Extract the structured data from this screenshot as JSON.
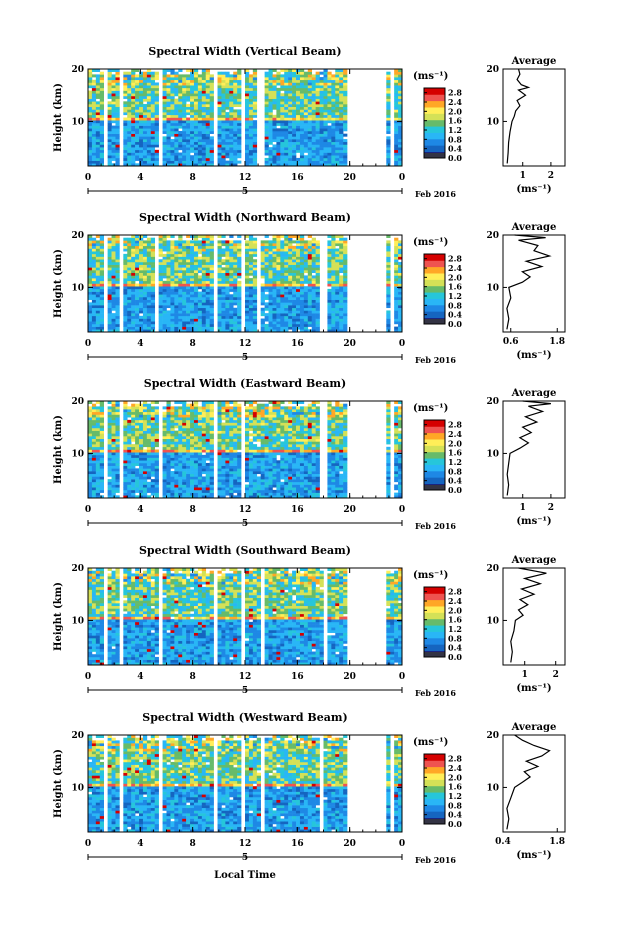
{
  "figure": {
    "xlabel": "Local Time",
    "date_label": "Feb 2016",
    "day_label": "5",
    "colorbar_unit": "(ms⁻¹)",
    "average_title": "Average",
    "average_xlabel": "(ms⁻¹)",
    "ylabel": "Height (km)"
  },
  "colors": {
    "colormap": [
      "#1a237e",
      "#1565c0",
      "#1e88e5",
      "#29b6f6",
      "#26c6da",
      "#66bb6a",
      "#d4e157",
      "#ffee58",
      "#ffa726",
      "#ef5350",
      "#d50000"
    ]
  },
  "chart_data": [
    {
      "type": "heatmap",
      "title": "Spectral Width (Vertical Beam)",
      "xlim": [
        0,
        24
      ],
      "xticks": [
        "0",
        "4",
        "8",
        "12",
        "16",
        "20",
        "0"
      ],
      "ylim": [
        1.5,
        20
      ],
      "yticks": [
        "10",
        "20"
      ],
      "colorbar_ticks": [
        "0.0",
        "0.4",
        "0.8",
        "1.2",
        "1.6",
        "2.0",
        "2.4",
        "2.8"
      ],
      "colorbar_range": [
        0,
        3.0
      ],
      "gaps_hours": [
        [
          1.2,
          1.5
        ],
        [
          2.3,
          2.7
        ],
        [
          5.3,
          5.6
        ],
        [
          9.5,
          9.9
        ],
        [
          11.7,
          12.1
        ],
        [
          13.0,
          13.4
        ],
        [
          19.7,
          22.9
        ],
        [
          23.2,
          23.4
        ]
      ],
      "average": {
        "xlim": [
          0.3,
          2.5
        ],
        "xticks": [
          "1",
          "2"
        ],
        "yticks": [
          "10",
          "20"
        ],
        "ylim": [
          1.5,
          20
        ],
        "profile": [
          [
            0.45,
            2
          ],
          [
            0.48,
            4
          ],
          [
            0.5,
            6
          ],
          [
            0.55,
            8
          ],
          [
            0.62,
            10
          ],
          [
            0.7,
            11
          ],
          [
            0.75,
            12
          ],
          [
            0.9,
            13
          ],
          [
            0.8,
            14
          ],
          [
            1.1,
            15
          ],
          [
            0.85,
            16
          ],
          [
            1.2,
            16.5
          ],
          [
            0.95,
            17
          ],
          [
            0.8,
            18
          ],
          [
            0.9,
            19
          ],
          [
            0.85,
            20
          ]
        ]
      }
    },
    {
      "type": "heatmap",
      "title": "Spectral Width (Northward Beam)",
      "xlim": [
        0,
        24
      ],
      "xticks": [
        "0",
        "4",
        "8",
        "12",
        "16",
        "20",
        "0"
      ],
      "ylim": [
        1.5,
        20
      ],
      "yticks": [
        "10",
        "20"
      ],
      "colorbar_ticks": [
        "0.0",
        "0.4",
        "0.8",
        "1.2",
        "1.6",
        "2.0",
        "2.4",
        "2.8"
      ],
      "colorbar_range": [
        0,
        3.0
      ],
      "gaps_hours": [
        [
          1.2,
          1.5
        ],
        [
          2.3,
          2.6
        ],
        [
          5.2,
          5.5
        ],
        [
          9.5,
          9.9
        ],
        [
          11.7,
          12.0
        ],
        [
          13.0,
          13.3
        ],
        [
          17.8,
          18.2
        ],
        [
          19.7,
          22.9
        ],
        [
          23.1,
          23.3
        ]
      ],
      "average": {
        "xlim": [
          0.4,
          2.0
        ],
        "xticks": [
          "0.6",
          "1.8"
        ],
        "yticks": [
          "10",
          "20"
        ],
        "ylim": [
          1.5,
          20
        ],
        "profile": [
          [
            0.5,
            2
          ],
          [
            0.55,
            4
          ],
          [
            0.5,
            6
          ],
          [
            0.6,
            8
          ],
          [
            0.55,
            10
          ],
          [
            0.9,
            11
          ],
          [
            1.1,
            12
          ],
          [
            0.9,
            13
          ],
          [
            1.4,
            14
          ],
          [
            1.0,
            15
          ],
          [
            1.6,
            16
          ],
          [
            1.2,
            17
          ],
          [
            1.3,
            18
          ],
          [
            0.8,
            19
          ],
          [
            1.5,
            19.5
          ],
          [
            0.7,
            20
          ]
        ]
      }
    },
    {
      "type": "heatmap",
      "title": "Spectral Width (Eastward Beam)",
      "xlim": [
        0,
        24
      ],
      "xticks": [
        "0",
        "4",
        "8",
        "12",
        "16",
        "20",
        "0"
      ],
      "ylim": [
        1.5,
        20
      ],
      "yticks": [
        "10",
        "20"
      ],
      "colorbar_ticks": [
        "0.0",
        "0.4",
        "0.8",
        "1.2",
        "1.6",
        "2.0",
        "2.4",
        "2.8"
      ],
      "colorbar_range": [
        0,
        3.0
      ],
      "gaps_hours": [
        [
          1.2,
          1.5
        ],
        [
          2.3,
          2.6
        ],
        [
          5.3,
          5.6
        ],
        [
          9.6,
          9.9
        ],
        [
          11.8,
          12.1
        ],
        [
          17.8,
          18.2
        ],
        [
          19.7,
          22.9
        ],
        [
          23.2,
          23.4
        ]
      ],
      "average": {
        "xlim": [
          0.3,
          2.5
        ],
        "xticks": [
          "1",
          "2"
        ],
        "yticks": [
          "10",
          "20"
        ],
        "ylim": [
          1.5,
          20
        ],
        "profile": [
          [
            0.45,
            2
          ],
          [
            0.5,
            4
          ],
          [
            0.45,
            6
          ],
          [
            0.5,
            8
          ],
          [
            0.55,
            10
          ],
          [
            0.9,
            11
          ],
          [
            1.2,
            12
          ],
          [
            0.9,
            13
          ],
          [
            1.3,
            14
          ],
          [
            1.0,
            15
          ],
          [
            1.5,
            16
          ],
          [
            1.1,
            17
          ],
          [
            1.7,
            18
          ],
          [
            1.2,
            19
          ],
          [
            2.0,
            19.5
          ],
          [
            1.0,
            20
          ]
        ]
      }
    },
    {
      "type": "heatmap",
      "title": "Spectral Width (Southward Beam)",
      "xlim": [
        0,
        24
      ],
      "xticks": [
        "0",
        "4",
        "8",
        "12",
        "16",
        "20",
        "0"
      ],
      "ylim": [
        1.5,
        20
      ],
      "yticks": [
        "10",
        "20"
      ],
      "colorbar_ticks": [
        "0.0",
        "0.4",
        "0.8",
        "1.2",
        "1.6",
        "2.0",
        "2.4",
        "2.8"
      ],
      "colorbar_range": [
        0,
        3.0
      ],
      "gaps_hours": [
        [
          1.2,
          1.5
        ],
        [
          2.3,
          2.6
        ],
        [
          5.3,
          5.6
        ],
        [
          9.5,
          9.9
        ],
        [
          11.7,
          12.1
        ],
        [
          13.1,
          13.4
        ],
        [
          17.9,
          18.2
        ],
        [
          19.7,
          22.9
        ]
      ],
      "average": {
        "xlim": [
          0.3,
          2.3
        ],
        "xticks": [
          "1",
          "2"
        ],
        "yticks": [
          "10",
          "20"
        ],
        "ylim": [
          1.5,
          20
        ],
        "profile": [
          [
            0.55,
            2
          ],
          [
            0.6,
            4
          ],
          [
            0.55,
            6
          ],
          [
            0.65,
            8
          ],
          [
            0.7,
            10
          ],
          [
            0.95,
            11
          ],
          [
            0.8,
            12
          ],
          [
            1.1,
            13
          ],
          [
            0.85,
            14
          ],
          [
            1.3,
            15
          ],
          [
            0.9,
            16
          ],
          [
            1.5,
            17
          ],
          [
            1.0,
            18
          ],
          [
            1.7,
            19
          ],
          [
            0.8,
            20
          ]
        ]
      }
    },
    {
      "type": "heatmap",
      "title": "Spectral Width (Westward Beam)",
      "xlim": [
        0,
        24
      ],
      "xticks": [
        "0",
        "4",
        "8",
        "12",
        "16",
        "20",
        "0"
      ],
      "ylim": [
        1.5,
        20
      ],
      "yticks": [
        "10",
        "20"
      ],
      "colorbar_ticks": [
        "0.0",
        "0.4",
        "0.8",
        "1.2",
        "1.6",
        "2.0",
        "2.4",
        "2.8"
      ],
      "colorbar_range": [
        0,
        3.0
      ],
      "gaps_hours": [
        [
          1.2,
          1.5
        ],
        [
          2.3,
          2.6
        ],
        [
          5.3,
          5.6
        ],
        [
          9.5,
          9.9
        ],
        [
          11.8,
          12.1
        ],
        [
          13.2,
          13.5
        ],
        [
          17.8,
          18.1
        ],
        [
          19.7,
          22.9
        ],
        [
          23.1,
          23.3
        ]
      ],
      "average": {
        "xlim": [
          0.4,
          2.0
        ],
        "xticks": [
          "0.4",
          "1.8"
        ],
        "yticks": [
          "10",
          "20"
        ],
        "ylim": [
          1.5,
          20
        ],
        "profile": [
          [
            0.5,
            2
          ],
          [
            0.55,
            4
          ],
          [
            0.5,
            6
          ],
          [
            0.6,
            8
          ],
          [
            0.7,
            10
          ],
          [
            0.9,
            11
          ],
          [
            1.1,
            12
          ],
          [
            0.95,
            13
          ],
          [
            1.3,
            14
          ],
          [
            1.0,
            15
          ],
          [
            1.4,
            16
          ],
          [
            1.6,
            17
          ],
          [
            1.2,
            18
          ],
          [
            0.9,
            19
          ],
          [
            0.7,
            20
          ]
        ]
      }
    }
  ]
}
